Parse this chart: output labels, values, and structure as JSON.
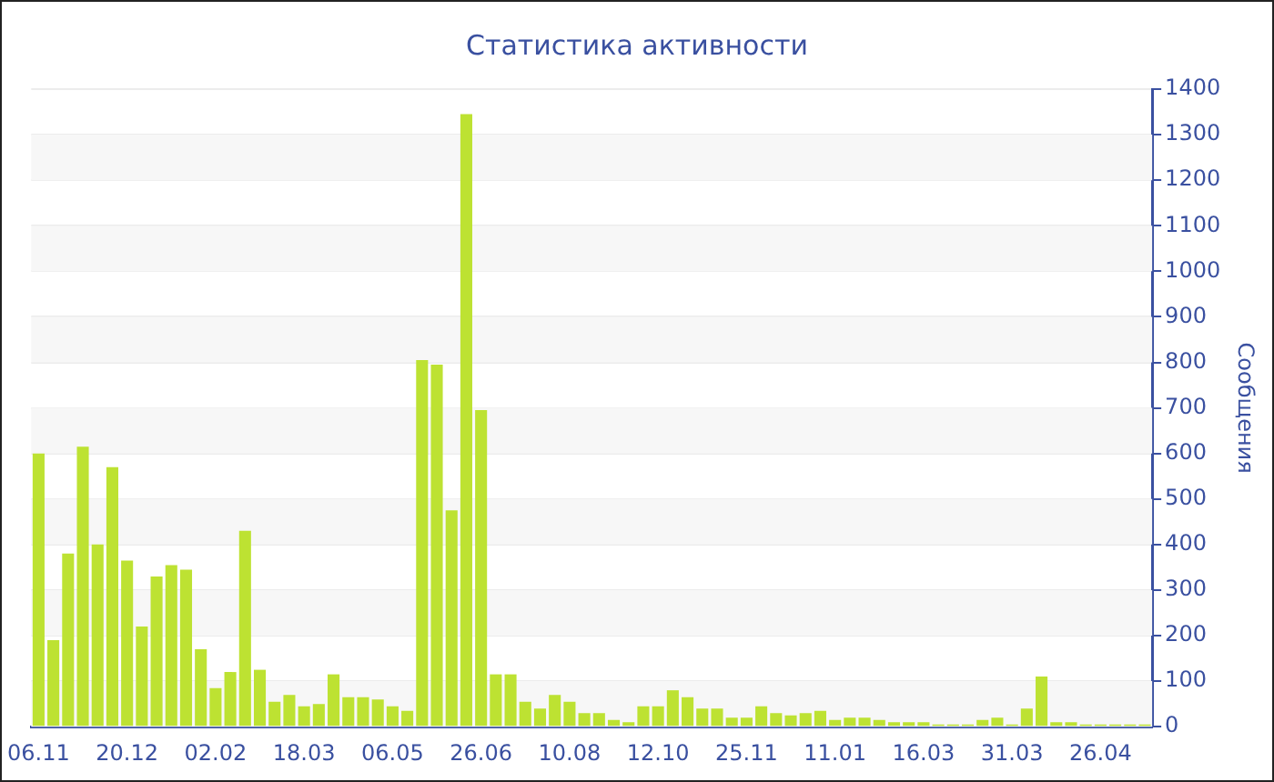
{
  "chart_data": {
    "type": "bar",
    "title": "Статистика активности",
    "ylabel": "Сообщения",
    "categories": [
      "06.11",
      null,
      null,
      null,
      null,
      null,
      "20.12",
      null,
      null,
      null,
      null,
      null,
      "02.02",
      null,
      null,
      null,
      null,
      null,
      "18.03",
      null,
      null,
      null,
      null,
      null,
      "06.05",
      null,
      null,
      null,
      null,
      null,
      "26.06",
      null,
      null,
      null,
      null,
      null,
      "10.08",
      null,
      null,
      null,
      null,
      null,
      "12.10",
      null,
      null,
      null,
      null,
      null,
      "25.11",
      null,
      null,
      null,
      null,
      null,
      "11.01",
      null,
      null,
      null,
      null,
      null,
      "16.03",
      null,
      null,
      null,
      null,
      null,
      "31.03",
      null,
      null,
      null,
      null,
      null,
      "26.04",
      null,
      null,
      null
    ],
    "values": [
      600,
      190,
      380,
      615,
      400,
      570,
      365,
      220,
      330,
      355,
      345,
      170,
      85,
      120,
      430,
      125,
      55,
      70,
      45,
      50,
      115,
      65,
      65,
      60,
      45,
      35,
      805,
      795,
      475,
      1345,
      695,
      115,
      115,
      55,
      40,
      70,
      55,
      30,
      30,
      15,
      10,
      45,
      45,
      80,
      65,
      40,
      40,
      20,
      20,
      45,
      30,
      25,
      30,
      35,
      15,
      20,
      20,
      15,
      10,
      10,
      10,
      5,
      5,
      5,
      15,
      20,
      5,
      40,
      110,
      10,
      10,
      5,
      5,
      5,
      5,
      5
    ],
    "color": "#bde232",
    "ylim": [
      0,
      1400
    ],
    "yticks": [
      0,
      100,
      200,
      300,
      400,
      500,
      600,
      700,
      800,
      900,
      1000,
      1100,
      1200,
      1300,
      1400
    ],
    "grid": "y"
  }
}
